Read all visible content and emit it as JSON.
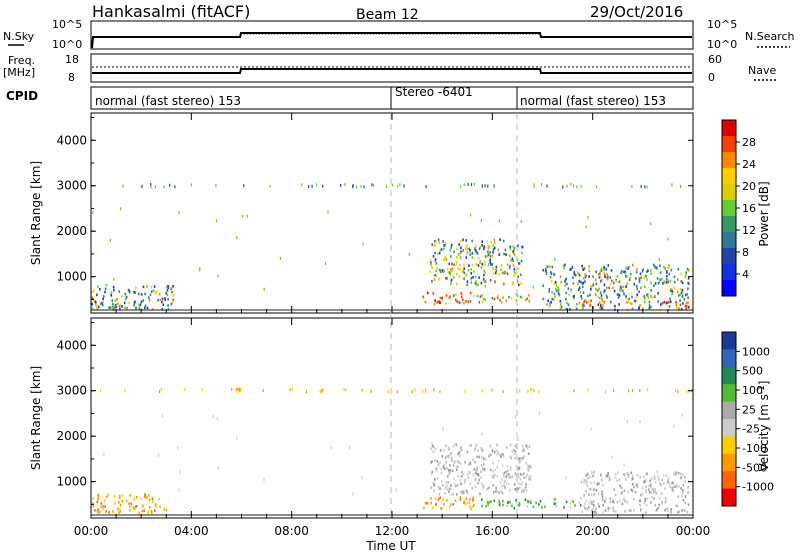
{
  "header": {
    "station": "Hankasalmi (fitACF)",
    "beam": "Beam 12",
    "date": "29/Oct/2016"
  },
  "panel_labels": {
    "nsky": "N.Sky",
    "nsearch": "N.Search",
    "freq_top": "Freq.",
    "freq_unit": "[MHz]",
    "nave": "Nave",
    "cpid": "CPID"
  },
  "small_axes": {
    "noise_ticks_left": [
      "10^5",
      "10^0"
    ],
    "noise_ticks_right": [
      "10^5",
      "10^0"
    ],
    "freq_ticks": [
      "18",
      "8"
    ],
    "nave_ticks": [
      "60",
      "0"
    ]
  },
  "cpid_segments": [
    {
      "label": "normal (fast stereo) 153",
      "start_hour": 0
    },
    {
      "label": "Stereo -6401",
      "start_hour": 12
    },
    {
      "label": "normal (fast stereo) 153",
      "start_hour": 17
    }
  ],
  "power_colorbar": {
    "label": "Power [dB]",
    "ticks": [
      "28",
      "24",
      "20",
      "16",
      "12",
      "8",
      "4"
    ],
    "colors": [
      "#dd0000",
      "#ee4400",
      "#ff8800",
      "#ffcc00",
      "#ddcc00",
      "#66cc33",
      "#339966",
      "#337799",
      "#2244aa",
      "#1133dd",
      "#0000ff"
    ]
  },
  "velocity_colorbar": {
    "label": "Velocity [m s",
    "label_sup": "-1",
    "label_end": "]",
    "ticks": [
      "1000",
      "500",
      "100",
      "25",
      "-25",
      "-100",
      "-500",
      "-1000"
    ],
    "colors": [
      "#1a3a9a",
      "#3366bb",
      "#228855",
      "#55bb33",
      "#aaaaaa",
      "#cccccc",
      "#ffcc00",
      "#ff9900",
      "#ff6600",
      "#ee0000"
    ]
  },
  "time_axis": {
    "label": "Time UT",
    "ticks": [
      "00:00",
      "04:00",
      "08:00",
      "12:00",
      "16:00",
      "20:00",
      "00:00"
    ]
  },
  "chart_data": [
    {
      "type": "heatmap",
      "name": "power",
      "ylabel": "Slant Range [km]",
      "yticks": [
        "4000",
        "3000",
        "2000",
        "1000"
      ],
      "ylim": [
        200,
        4600
      ],
      "xlim_hours": [
        0,
        24
      ],
      "regions": [
        {
          "t0": 0.0,
          "t1": 3.3,
          "r0": 250,
          "r1": 800,
          "level": "mixed_low"
        },
        {
          "t0": 13.2,
          "t1": 15.2,
          "r0": 380,
          "r1": 650,
          "level": "high"
        },
        {
          "t0": 13.5,
          "t1": 17.2,
          "r0": 800,
          "r1": 1800,
          "level": "mixed_mid"
        },
        {
          "t0": 15.0,
          "t1": 17.5,
          "r0": 400,
          "r1": 600,
          "level": "mid"
        },
        {
          "t0": 18.0,
          "t1": 23.8,
          "r0": 250,
          "r1": 1250,
          "level": "mixed_low"
        },
        {
          "t0": 19.5,
          "t1": 20.5,
          "r0": 280,
          "r1": 480,
          "level": "high"
        },
        {
          "t0": 22.8,
          "t1": 24.0,
          "r0": 250,
          "r1": 450,
          "level": "high"
        }
      ]
    },
    {
      "type": "heatmap",
      "name": "velocity",
      "ylabel": "Slant Range [km]",
      "yticks": [
        "4000",
        "3000",
        "2000",
        "1000"
      ],
      "ylim": [
        200,
        4600
      ],
      "xlim_hours": [
        0,
        24
      ],
      "regions": [
        {
          "t0": 0.0,
          "t1": 3.0,
          "r0": 280,
          "r1": 700,
          "level": "negative"
        },
        {
          "t0": 13.2,
          "t1": 15.3,
          "r0": 380,
          "r1": 650,
          "level": "negative"
        },
        {
          "t0": 13.5,
          "t1": 17.5,
          "r0": 700,
          "r1": 1800,
          "level": "near_zero"
        },
        {
          "t0": 15.5,
          "t1": 19.5,
          "r0": 400,
          "r1": 600,
          "level": "positive_low"
        },
        {
          "t0": 19.5,
          "t1": 23.8,
          "r0": 300,
          "r1": 1200,
          "level": "near_zero"
        }
      ]
    }
  ]
}
